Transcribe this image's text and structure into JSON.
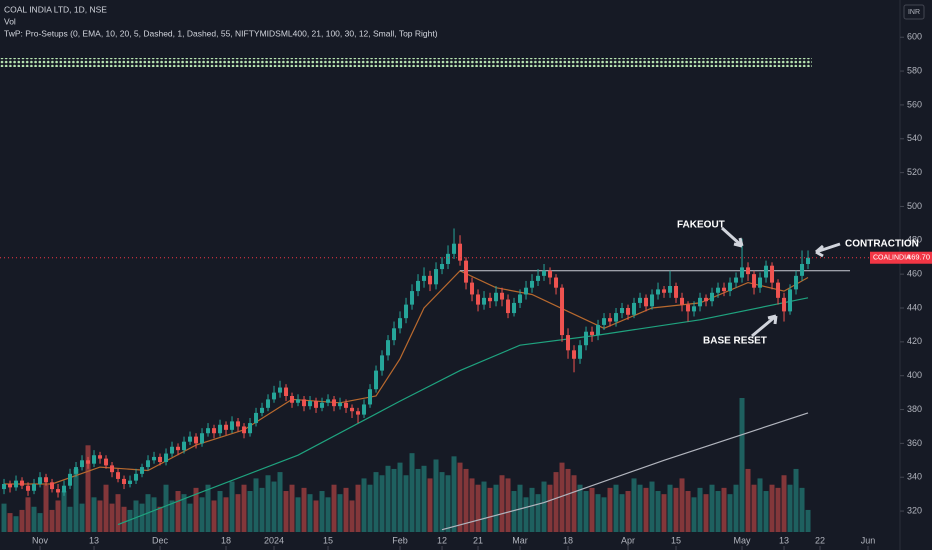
{
  "header": {
    "title": "COAL INDIA LTD, 1D, NSE",
    "volume_label": "Vol",
    "indicator": "TwP: Pro-Setups (0, EMA, 10, 20, 5, Dashed, 1, Dashed, 55, NIFTYMIDSML400, 21, 100, 30, 12, Small, Top Right)",
    "currency": "INR"
  },
  "chart_data": {
    "type": "candlestick",
    "xlim": [
      -0.67,
      149.33
    ],
    "ylim": [
      297,
      622
    ],
    "yticks": [
      320,
      340,
      360,
      380,
      400,
      420,
      440,
      460,
      480,
      500,
      520,
      540,
      560,
      580,
      600
    ],
    "xticks": [
      {
        "value": 6,
        "label": "Nov"
      },
      {
        "value": 15,
        "label": "13"
      },
      {
        "value": 26,
        "label": "Dec"
      },
      {
        "value": 37,
        "label": "18"
      },
      {
        "value": 45,
        "label": "2024"
      },
      {
        "value": 54,
        "label": "15"
      },
      {
        "value": 66,
        "label": "Feb"
      },
      {
        "value": 73,
        "label": "12"
      },
      {
        "value": 79,
        "label": "21"
      },
      {
        "value": 86,
        "label": "Mar"
      },
      {
        "value": 94,
        "label": "18"
      },
      {
        "value": 104,
        "label": "Apr"
      },
      {
        "value": 112,
        "label": "15"
      },
      {
        "value": 123,
        "label": "May"
      },
      {
        "value": 130,
        "label": "13"
      },
      {
        "value": 136,
        "label": "22"
      },
      {
        "value": 144,
        "label": "Jun"
      }
    ],
    "up_color": "#26a69a",
    "down_color": "#ef5350",
    "open": [
      333,
      336,
      334,
      338,
      335,
      332,
      336,
      340,
      337,
      333,
      331,
      335,
      342,
      346,
      350,
      348,
      353,
      351,
      347,
      343,
      339,
      336,
      338,
      342,
      346,
      350,
      352,
      349,
      354,
      358,
      356,
      361,
      364,
      360,
      366,
      369,
      366,
      371,
      368,
      373,
      370,
      366,
      372,
      378,
      381,
      386,
      390,
      393,
      388,
      384,
      386,
      382,
      385,
      381,
      384,
      386,
      382,
      384,
      381,
      379,
      377,
      383,
      392,
      403,
      412,
      421,
      428,
      434,
      442,
      450,
      456,
      459,
      454,
      463,
      466,
      472,
      478,
      468,
      455,
      448,
      442,
      446,
      444,
      449,
      445,
      437,
      443,
      448,
      452,
      456,
      459,
      462,
      458,
      452,
      424,
      415,
      410,
      418,
      426,
      424,
      430,
      434,
      432,
      437,
      440,
      436,
      443,
      446,
      441,
      448,
      451,
      449,
      453,
      446,
      442,
      438,
      441,
      446,
      444,
      449,
      452,
      450,
      455,
      458,
      464,
      460,
      452,
      458,
      465,
      455,
      446,
      438,
      451,
      459,
      466
    ],
    "high": [
      339,
      338,
      341,
      340,
      337,
      339,
      343,
      342,
      339,
      336,
      338,
      345,
      349,
      353,
      352,
      356,
      355,
      353,
      349,
      345,
      341,
      341,
      345,
      348,
      353,
      355,
      354,
      357,
      361,
      360,
      364,
      367,
      366,
      369,
      372,
      371,
      374,
      373,
      376,
      375,
      372,
      375,
      381,
      384,
      389,
      394,
      397,
      395,
      390,
      389,
      388,
      388,
      387,
      387,
      389,
      388,
      387,
      386,
      383,
      381,
      386,
      395,
      406,
      415,
      424,
      432,
      438,
      446,
      454,
      460,
      464,
      462,
      467,
      470,
      477,
      487,
      483,
      470,
      458,
      451,
      450,
      449,
      453,
      452,
      448,
      446,
      451,
      456,
      460,
      463,
      466,
      464,
      460,
      454,
      428,
      418,
      421,
      429,
      429,
      433,
      437,
      437,
      440,
      443,
      442,
      446,
      449,
      448,
      451,
      455,
      453,
      462,
      455,
      449,
      444,
      444,
      449,
      448,
      452,
      455,
      455,
      458,
      461,
      481,
      467,
      462,
      461,
      468,
      467,
      457,
      449,
      454,
      462,
      474,
      474
    ],
    "low": [
      330,
      331,
      332,
      333,
      329,
      330,
      334,
      335,
      331,
      328,
      329,
      333,
      340,
      344,
      345,
      346,
      348,
      345,
      340,
      337,
      333,
      334,
      336,
      340,
      344,
      348,
      347,
      347,
      352,
      353,
      354,
      359,
      357,
      358,
      364,
      363,
      364,
      365,
      366,
      367,
      363,
      364,
      370,
      376,
      379,
      384,
      387,
      385,
      381,
      382,
      379,
      380,
      378,
      379,
      382,
      379,
      380,
      378,
      375,
      372,
      375,
      381,
      390,
      400,
      409,
      418,
      425,
      431,
      439,
      447,
      452,
      450,
      451,
      460,
      463,
      469,
      465,
      451,
      444,
      438,
      439,
      440,
      441,
      441,
      434,
      435,
      440,
      445,
      449,
      453,
      456,
      454,
      448,
      420,
      410,
      402,
      407,
      415,
      420,
      421,
      427,
      429,
      429,
      434,
      433,
      434,
      440,
      438,
      439,
      445,
      446,
      446,
      443,
      438,
      432,
      435,
      438,
      441,
      441,
      446,
      447,
      447,
      452,
      455,
      456,
      448,
      449,
      455,
      451,
      442,
      432,
      436,
      448,
      456,
      463
    ],
    "close": [
      336,
      334,
      338,
      335,
      332,
      336,
      340,
      337,
      333,
      331,
      335,
      342,
      346,
      350,
      348,
      353,
      351,
      347,
      343,
      339,
      336,
      338,
      342,
      346,
      350,
      352,
      349,
      354,
      358,
      356,
      361,
      364,
      360,
      366,
      369,
      366,
      371,
      368,
      373,
      370,
      366,
      372,
      378,
      381,
      386,
      390,
      393,
      388,
      384,
      386,
      382,
      385,
      381,
      384,
      386,
      382,
      384,
      381,
      379,
      377,
      383,
      392,
      403,
      412,
      421,
      428,
      434,
      442,
      450,
      456,
      459,
      454,
      463,
      466,
      472,
      478,
      468,
      455,
      448,
      442,
      446,
      444,
      449,
      445,
      437,
      443,
      448,
      452,
      456,
      459,
      462,
      458,
      452,
      424,
      415,
      410,
      418,
      426,
      424,
      430,
      434,
      432,
      437,
      440,
      436,
      443,
      446,
      441,
      448,
      451,
      449,
      453,
      446,
      442,
      438,
      441,
      446,
      444,
      449,
      452,
      450,
      455,
      458,
      464,
      460,
      452,
      458,
      465,
      455,
      446,
      438,
      451,
      459,
      466,
      469.7
    ],
    "volume": [
      18,
      12,
      10,
      14,
      22,
      16,
      12,
      30,
      14,
      20,
      26,
      16,
      40,
      18,
      55,
      22,
      20,
      30,
      18,
      24,
      16,
      14,
      20,
      18,
      24,
      22,
      16,
      30,
      20,
      26,
      24,
      18,
      28,
      22,
      30,
      20,
      26,
      22,
      32,
      24,
      30,
      26,
      34,
      28,
      36,
      32,
      38,
      26,
      30,
      22,
      28,
      24,
      20,
      26,
      22,
      30,
      24,
      28,
      20,
      30,
      34,
      30,
      38,
      36,
      42,
      40,
      44,
      36,
      50,
      40,
      42,
      34,
      46,
      38,
      36,
      48,
      44,
      40,
      34,
      30,
      32,
      28,
      30,
      36,
      34,
      26,
      30,
      22,
      28,
      24,
      32,
      30,
      38,
      44,
      40,
      36,
      30,
      26,
      28,
      24,
      22,
      28,
      30,
      24,
      26,
      34,
      30,
      28,
      32,
      26,
      24,
      30,
      28,
      34,
      26,
      22,
      28,
      24,
      30,
      26,
      28,
      24,
      30,
      85,
      40,
      30,
      34,
      26,
      30,
      28,
      36,
      30,
      40,
      28,
      14
    ],
    "lines": [
      {
        "color": "#b8692e",
        "x": [
          0,
          8,
          16,
          24,
          32,
          40,
          48,
          56,
          62,
          66,
          70,
          76,
          82,
          88,
          94,
          100,
          108,
          116,
          124,
          130,
          134
        ],
        "values": [
          336,
          336,
          346,
          344,
          359,
          368,
          386,
          384,
          388,
          410,
          440,
          462,
          452,
          448,
          438,
          428,
          440,
          443,
          455,
          450,
          458
        ]
      },
      {
        "color": "#1fa37f",
        "x": [
          19,
          32,
          49,
          66,
          76,
          86,
          99,
          116,
          134
        ],
        "values": [
          312,
          330,
          353,
          385,
          403,
          418,
          424,
          433,
          446
        ]
      },
      {
        "color": "#b2b5be",
        "x": [
          73,
          90,
          110,
          134
        ],
        "values": [
          309,
          325,
          350,
          378
        ]
      }
    ],
    "resistance": {
      "value": 462,
      "from": 76,
      "to": 141,
      "color": "#c8cbd3"
    },
    "price_tag": {
      "symbol": "COALINDIA",
      "label": "469.70",
      "value": 469.7,
      "color": "#f23645"
    },
    "annotations": {
      "fakeout": "FAKEOUT",
      "contraction": "CONTRACTION",
      "base_reset": "BASE RESET"
    }
  }
}
